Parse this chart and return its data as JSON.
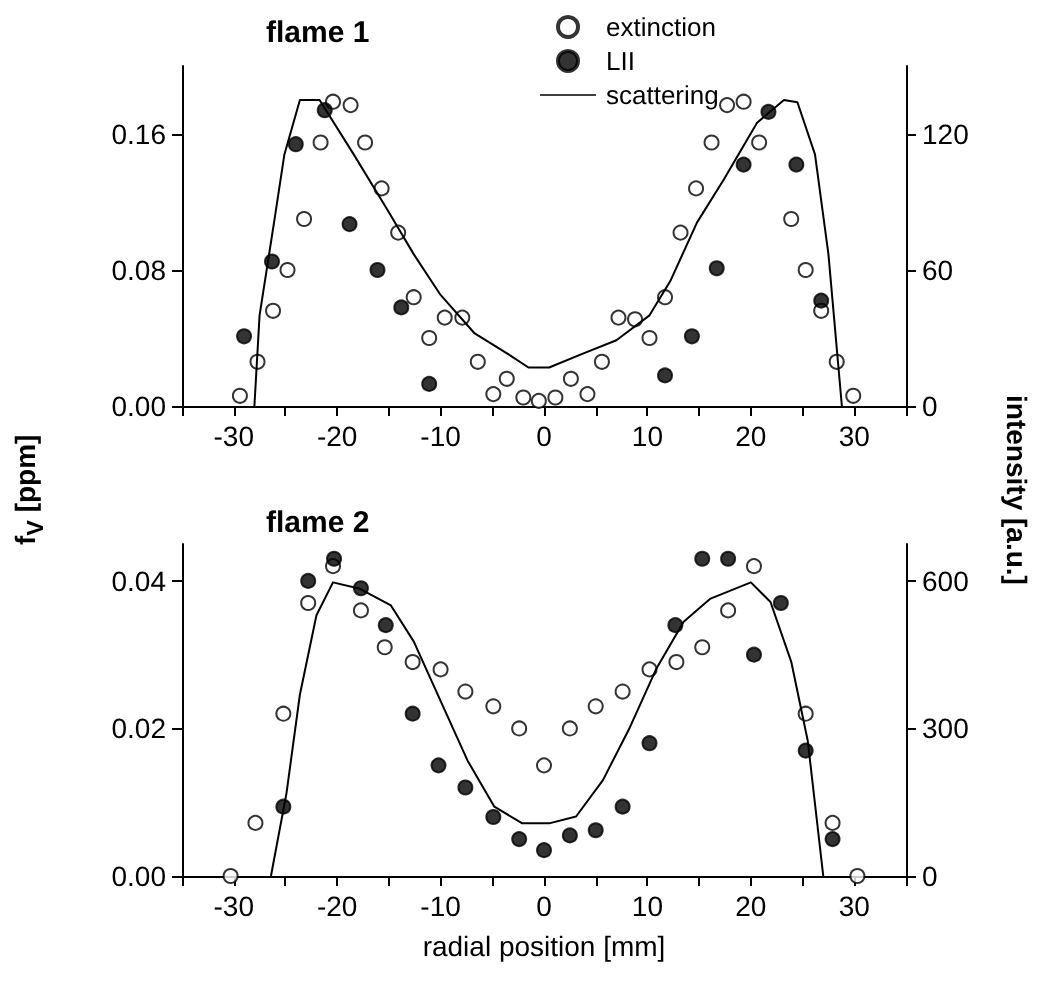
{
  "chart_data": [
    {
      "type": "scatter",
      "title": "flame 1",
      "ylabel": "f$_{V}$ [ppm]",
      "y2label": "intensity [a.u.]",
      "legend": "top",
      "xlim": [
        -35,
        35
      ],
      "xticks": [
        {
          "value": -35,
          "label": null
        },
        -30,
        {
          "value": -25,
          "label": null
        },
        -20,
        {
          "value": -15,
          "label": null
        },
        -10,
        {
          "value": -5,
          "label": null
        },
        0,
        {
          "value": 5,
          "label": null
        },
        10,
        {
          "value": 15,
          "label": null
        },
        20,
        {
          "value": 25,
          "label": null
        },
        30,
        {
          "value": 35,
          "label": null
        }
      ],
      "ylim": [
        0,
        0.2
      ],
      "yticks": [
        {
          "value": 0,
          "label": "0.00"
        },
        {
          "value": 0.08,
          "label": "0.08"
        },
        {
          "value": 0.16,
          "label": "0.16"
        }
      ],
      "y2lim": [
        0,
        150
      ],
      "y2ticks": [
        0,
        60,
        120
      ],
      "series": [
        {
          "name": "extinction",
          "marker": "circle",
          "color": "#ffffff",
          "x": [
            -29.4,
            -27.7,
            -26.2,
            -24.8,
            -23.2,
            -21.6,
            -20.4,
            -18.7,
            -17.3,
            -15.7,
            -14.1,
            -12.6,
            -11.1,
            -9.6,
            -7.9,
            -6.4,
            -4.9,
            -3.6,
            -2.0,
            -0.5,
            1.1,
            2.6,
            4.2,
            5.6,
            7.2,
            8.8,
            10.2,
            11.7,
            13.2,
            14.7,
            16.2,
            17.7,
            19.3,
            20.8,
            23.9,
            25.3,
            26.8,
            28.3,
            29.9
          ],
          "values": [
            0.006,
            0.026,
            0.056,
            0.08,
            0.11,
            0.155,
            0.179,
            0.177,
            0.155,
            0.128,
            0.102,
            0.064,
            0.04,
            0.052,
            0.052,
            0.026,
            0.007,
            0.016,
            0.005,
            0.003,
            0.005,
            0.016,
            0.007,
            0.026,
            0.052,
            0.051,
            0.04,
            0.064,
            0.102,
            0.128,
            0.155,
            0.177,
            0.179,
            0.155,
            0.11,
            0.08,
            0.056,
            0.026,
            0.006
          ]
        },
        {
          "name": "LII",
          "marker": "circle",
          "color": "#000000",
          "x": [
            -29.0,
            -26.3,
            -24.0,
            -21.2,
            -18.8,
            -16.1,
            -13.8,
            -11.1,
            11.7,
            14.3,
            16.7,
            19.3,
            21.7,
            24.4,
            26.8
          ],
          "values": [
            0.041,
            0.085,
            0.154,
            0.174,
            0.107,
            0.08,
            0.058,
            0.013,
            0.018,
            0.041,
            0.081,
            0.142,
            0.173,
            0.142,
            0.062
          ]
        },
        {
          "name": "scattering",
          "type": "line",
          "axis": "y2",
          "marker": "none",
          "line_style": "solid",
          "color": "#000000",
          "x": [
            -28,
            -27.5,
            -26.1,
            -25.1,
            -23.6,
            -21.7,
            -18.4,
            -15.2,
            -12.6,
            -10,
            -6.7,
            -3.5,
            -1.5,
            0.5,
            3.7,
            7,
            10.2,
            12.2,
            14.8,
            17.4,
            20.6,
            23.2,
            24.5,
            26.2,
            27.5,
            28.8
          ],
          "values": [
            0,
            40,
            81,
            111,
            135,
            135,
            111,
            87,
            67,
            49,
            32,
            23,
            17,
            17,
            23,
            29,
            40,
            55,
            81,
            100,
            125,
            135,
            134,
            111,
            67,
            0
          ]
        }
      ]
    },
    {
      "type": "scatter",
      "title": "flame 2",
      "xlabel": "radial position [mm]",
      "xlim": [
        -35,
        35
      ],
      "xticks": [
        {
          "value": -35,
          "label": null
        },
        -30,
        {
          "value": -25,
          "label": null
        },
        -20,
        {
          "value": -15,
          "label": null
        },
        -10,
        {
          "value": -5,
          "label": null
        },
        0,
        {
          "value": 5,
          "label": null
        },
        10,
        {
          "value": 15,
          "label": null
        },
        20,
        {
          "value": 25,
          "label": null
        },
        30,
        {
          "value": 35,
          "label": null
        }
      ],
      "ylim": [
        0,
        0.045
      ],
      "yticks": [
        {
          "value": 0,
          "label": "0.00"
        },
        {
          "value": 0.02,
          "label": "0.02"
        },
        {
          "value": 0.04,
          "label": "0.04"
        }
      ],
      "y2lim": [
        0,
        675
      ],
      "y2ticks": [
        0,
        300,
        600
      ],
      "series": [
        {
          "marker": "circle",
          "color": "#ffffff",
          "x": [
            -30.3,
            -27.9,
            -25.2,
            -22.8,
            -20.4,
            -17.7,
            -15.4,
            -12.7,
            -10.0,
            -7.6,
            -4.9,
            -2.4,
            0,
            2.5,
            5.0,
            7.6,
            10.2,
            12.8,
            15.3,
            17.8,
            20.3,
            25.3,
            27.9,
            30.3
          ],
          "values": [
            0.0,
            0.0072,
            0.022,
            0.037,
            0.042,
            0.036,
            0.031,
            0.029,
            0.028,
            0.025,
            0.023,
            0.02,
            0.015,
            0.02,
            0.023,
            0.025,
            0.028,
            0.029,
            0.031,
            0.036,
            0.042,
            0.022,
            0.0072,
            0.0
          ]
        },
        {
          "marker": "circle",
          "color": "#000000",
          "x": [
            -25.2,
            -22.8,
            -20.3,
            -17.7,
            -15.3,
            -12.7,
            -10.2,
            -7.6,
            -4.9,
            -2.4,
            0,
            2.5,
            5.0,
            7.6,
            10.2,
            12.7,
            15.3,
            17.8,
            20.3,
            22.9,
            25.3,
            27.9
          ],
          "values": [
            0.0094,
            0.04,
            0.043,
            0.039,
            0.034,
            0.022,
            0.015,
            0.012,
            0.008,
            0.005,
            0.0035,
            0.0055,
            0.0062,
            0.0094,
            0.018,
            0.034,
            0.043,
            0.043,
            0.03,
            0.037,
            0.017,
            0.005
          ]
        },
        {
          "type": "line",
          "axis": "y2",
          "marker": "none",
          "line_style": "solid",
          "color": "#000000",
          "x": [
            -26.4,
            -24.9,
            -23.6,
            -22,
            -20.4,
            -17.8,
            -14.8,
            -12.6,
            -10,
            -7.4,
            -4.8,
            -2.1,
            0.5,
            3.1,
            5.7,
            8.3,
            10.9,
            13.5,
            16.1,
            20,
            21.9,
            23.9,
            25.5,
            27
          ],
          "values": [
            0,
            168,
            369,
            530,
            597,
            584,
            550,
            477,
            356,
            235,
            141,
            107,
            107,
            121,
            195,
            302,
            423,
            517,
            564,
            597,
            557,
            436,
            275,
            0
          ]
        }
      ]
    }
  ]
}
